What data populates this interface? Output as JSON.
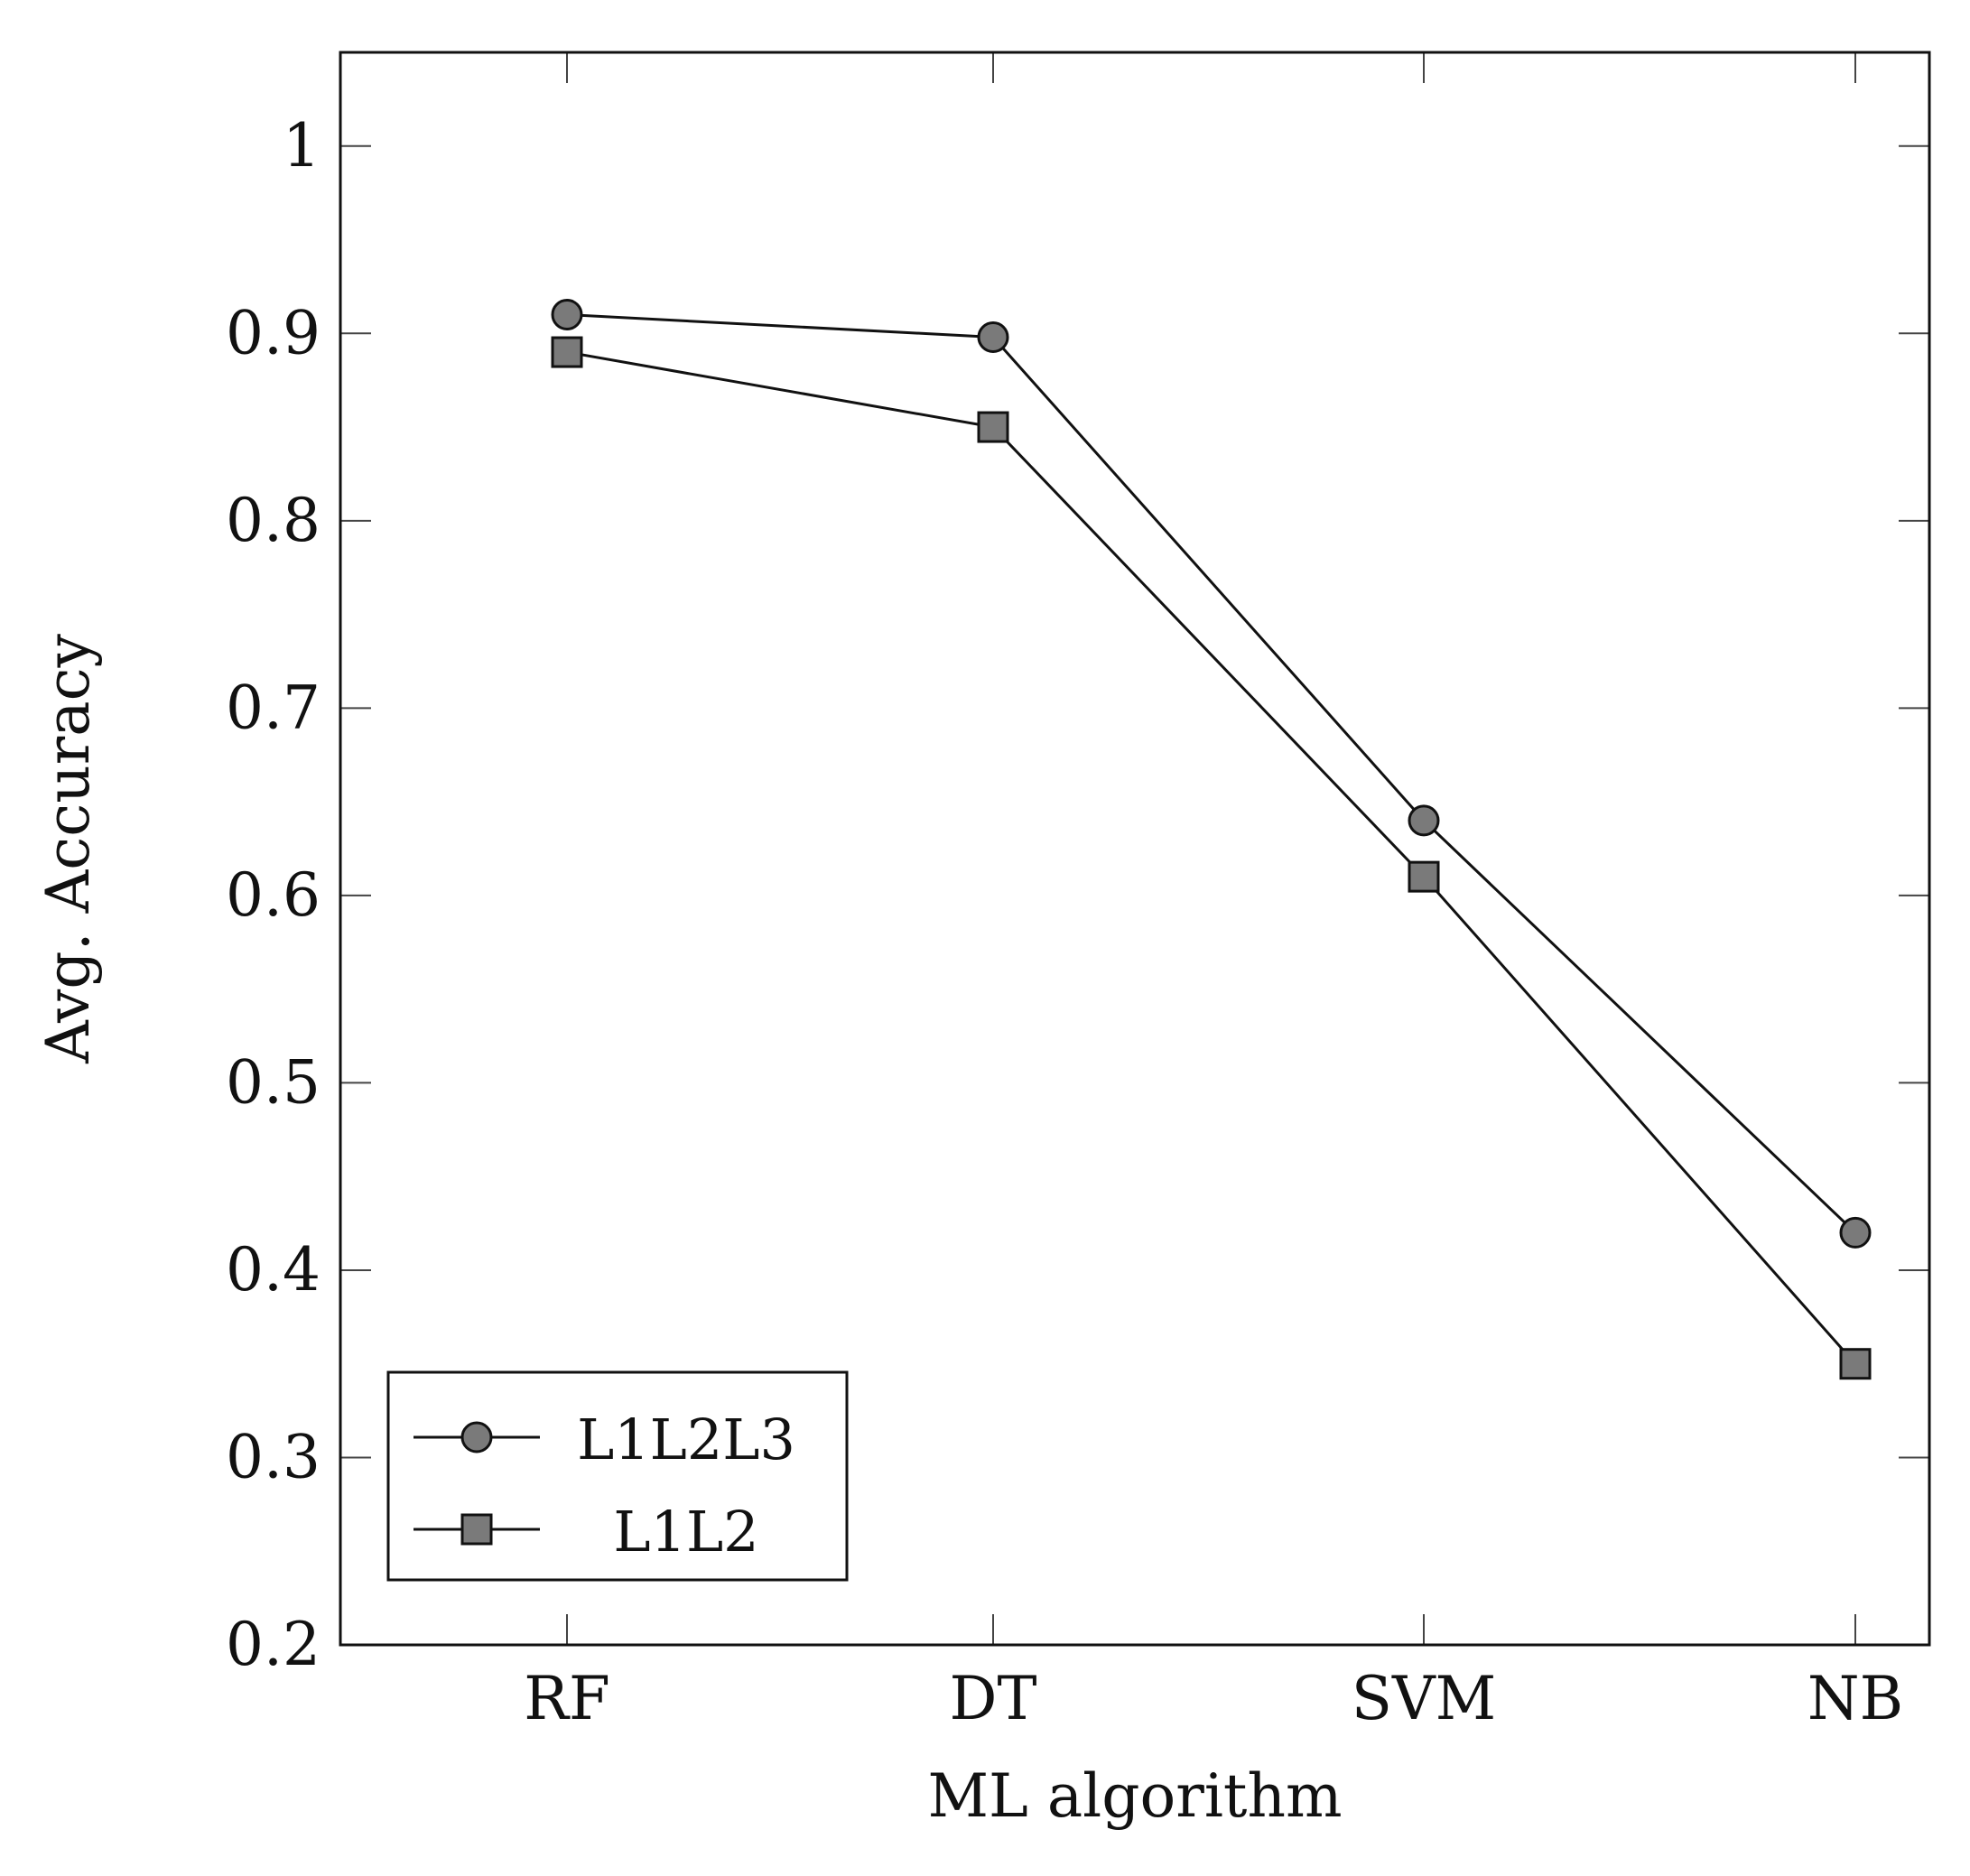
{
  "chart_data": {
    "type": "line",
    "title": "",
    "xlabel": "ML algorithm",
    "ylabel": "Avg. Accuracy",
    "categories": [
      "RF",
      "DT",
      "SVM",
      "NB"
    ],
    "ylim": [
      0.2,
      1.05
    ],
    "yticks": [
      0.2,
      0.3,
      0.4,
      0.5,
      0.6,
      0.7,
      0.8,
      0.9,
      1.0
    ],
    "ytick_labels": [
      "0.2",
      "0.3",
      "0.4",
      "0.5",
      "0.6",
      "0.7",
      "0.8",
      "0.9",
      "1"
    ],
    "grid": false,
    "legend_position": "bottom-left",
    "series": [
      {
        "name": "L1L2L3",
        "marker": "circle",
        "values": [
          0.91,
          0.898,
          0.64,
          0.42
        ]
      },
      {
        "name": "L1L2",
        "marker": "square",
        "values": [
          0.89,
          0.85,
          0.61,
          0.35
        ]
      }
    ]
  },
  "colors": {
    "line": "#111111",
    "marker_fill": "#7a7a7a",
    "background": "#ffffff"
  }
}
